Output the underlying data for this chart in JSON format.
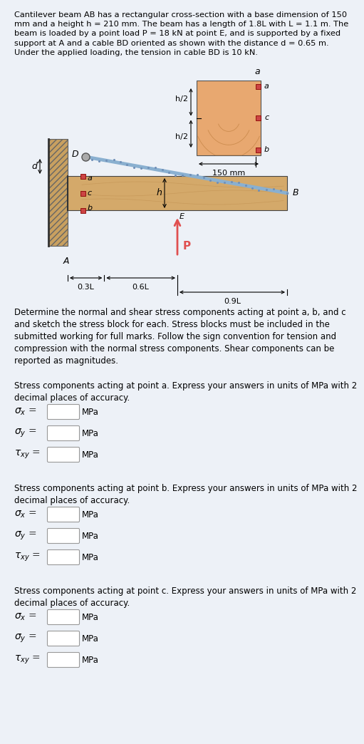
{
  "title_text": "Cantilever beam AB has a rectangular cross-section with a base dimension of 150\nmm and a height h = 210 mm. The beam has a length of 1.8L with L = 1.1 m. The\nbeam is loaded by a point load P = 18 kN at point E, and is supported by a fixed\nsupport at A and a cable BD oriented as shown with the distance d = 0.65 m.\nUnder the applied loading, the tension in cable BD is 10 kN.",
  "question_text": "Determine the normal and shear stress components acting at point a, b, and c\nand sketch the stress block for each. Stress blocks must be included in the\nsubmitted working for full marks. Follow the sign convention for tension and\ncompression with the normal stress components. Shear components can be\nreported as magnitudes.",
  "point_a_label": "Stress components acting at point a. Express your answers in units of MPa with 2\ndecimal places of accuracy.",
  "point_b_label": "Stress components acting at point b. Express your answers in units of MPa with 2\ndecimal places of accuracy.",
  "point_c_label": "Stress components acting at point c. Express your answers in units of MPa with 2\ndecimal places of accuracy.",
  "bg_color": "#edf1f7",
  "beam_fill": "#d4a96a",
  "support_fill": "#c8a060",
  "cable_color": "#8ab0d0",
  "load_color": "#e05050",
  "cs_fill": "#e8a870",
  "pt_fill": "#cc4444"
}
